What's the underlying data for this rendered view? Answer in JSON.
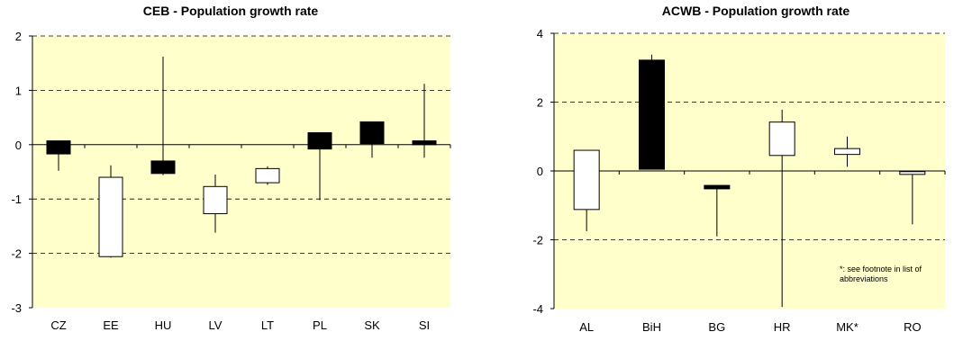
{
  "chart_data": [
    {
      "type": "candlestick",
      "title": "CEB - Population growth rate",
      "ylim": [
        -3,
        2
      ],
      "yticks": [
        "2",
        "1",
        "0",
        "-1",
        "-2",
        "-3"
      ],
      "grid": "dashed horizontal",
      "categories": [
        "CZ",
        "EE",
        "HU",
        "LV",
        "LT",
        "PL",
        "SK",
        "SI"
      ],
      "boxes": [
        {
          "low": -0.48,
          "high": 0.07,
          "box_bottom": -0.17,
          "box_top": 0.07,
          "fill": "black"
        },
        {
          "low": -2.08,
          "high": -0.38,
          "box_bottom": -2.06,
          "box_top": -0.6,
          "fill": "white"
        },
        {
          "low": -0.56,
          "high": 1.62,
          "box_bottom": -0.53,
          "box_top": -0.3,
          "fill": "black"
        },
        {
          "low": -1.62,
          "high": -0.55,
          "box_bottom": -1.27,
          "box_top": -0.77,
          "fill": "white"
        },
        {
          "low": -0.74,
          "high": -0.4,
          "box_bottom": -0.7,
          "box_top": -0.44,
          "fill": "white"
        },
        {
          "low": -1.02,
          "high": 0.22,
          "box_bottom": -0.08,
          "box_top": 0.22,
          "fill": "black"
        },
        {
          "low": -0.24,
          "high": 0.42,
          "box_bottom": 0.02,
          "box_top": 0.42,
          "fill": "black"
        },
        {
          "low": -0.24,
          "high": 1.12,
          "box_bottom": 0.0,
          "box_top": 0.07,
          "fill": "black"
        }
      ]
    },
    {
      "type": "candlestick",
      "title": "ACWB - Population growth rate",
      "ylim": [
        -4,
        4
      ],
      "yticks": [
        "4",
        "2",
        "0",
        "-2",
        "-4"
      ],
      "grid": "dashed horizontal",
      "categories": [
        "AL",
        "BiH",
        "BG",
        "HR",
        "MK*",
        "RO"
      ],
      "boxes": [
        {
          "low": -1.75,
          "high": 0.6,
          "box_bottom": -1.12,
          "box_top": 0.6,
          "fill": "white"
        },
        {
          "low": 0.05,
          "high": 3.38,
          "box_bottom": 0.05,
          "box_top": 3.22,
          "fill": "black"
        },
        {
          "low": -1.9,
          "high": -0.42,
          "box_bottom": -0.52,
          "box_top": -0.42,
          "fill": "black"
        },
        {
          "low": -3.95,
          "high": 1.78,
          "box_bottom": 0.45,
          "box_top": 1.42,
          "fill": "white"
        },
        {
          "low": 0.12,
          "high": 1.0,
          "box_bottom": 0.48,
          "box_top": 0.65,
          "fill": "white"
        },
        {
          "low": -1.55,
          "high": -0.02,
          "box_bottom": -0.1,
          "box_top": -0.02,
          "fill": "white"
        }
      ],
      "annotation_lines": [
        "*: see footnote in list of",
        "abbreviations"
      ]
    }
  ]
}
